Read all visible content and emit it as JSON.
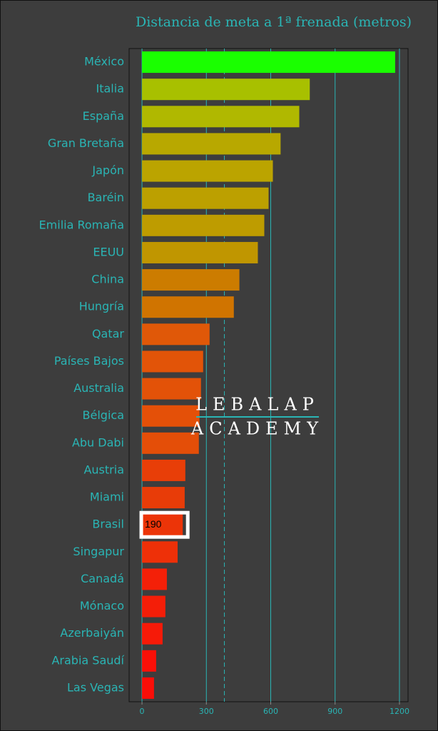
{
  "chart_data": {
    "type": "bar",
    "orientation": "horizontal",
    "title": "Distancia de meta a 1ª frenada (metros)",
    "categories": [
      "México",
      "Italia",
      "España",
      "Gran Bretaña",
      "Japón",
      "Baréin",
      "Emilia Romaña",
      "EEUU",
      "China",
      "Hungría",
      "Qatar",
      "Países Bajos",
      "Australia",
      "Bélgica",
      "Abu Dabi",
      "Austria",
      "Miami",
      "Brasil",
      "Singapur",
      "Canadá",
      "Mónaco",
      "Azerbaiyán",
      "Arabia Saudí",
      "Las Vegas"
    ],
    "values": [
      1180,
      782,
      733,
      646,
      610,
      590,
      570,
      540,
      454,
      428,
      315,
      285,
      275,
      268,
      265,
      202,
      199,
      190,
      166,
      116,
      109,
      96,
      66,
      56
    ],
    "colors": [
      "#1aff00",
      "#a8c000",
      "#b0b800",
      "#b8a800",
      "#bba400",
      "#bca000",
      "#be9c00",
      "#c09600",
      "#cc7c00",
      "#d07400",
      "#e05808",
      "#e25408",
      "#e35208",
      "#e45008",
      "#e44e08",
      "#e83e08",
      "#e83c08",
      "#ec3408",
      "#ee3008",
      "#f42008",
      "#f41e08",
      "#f61a08",
      "#fa1008",
      "#fa0e08"
    ],
    "xlim": [
      -60,
      1240
    ],
    "xticks": [
      0,
      300,
      600,
      900,
      1200
    ],
    "grid": true,
    "reference_line": 384,
    "highlight": "Brasil",
    "watermark": [
      "LEBALAP",
      "ACADEMY"
    ]
  }
}
